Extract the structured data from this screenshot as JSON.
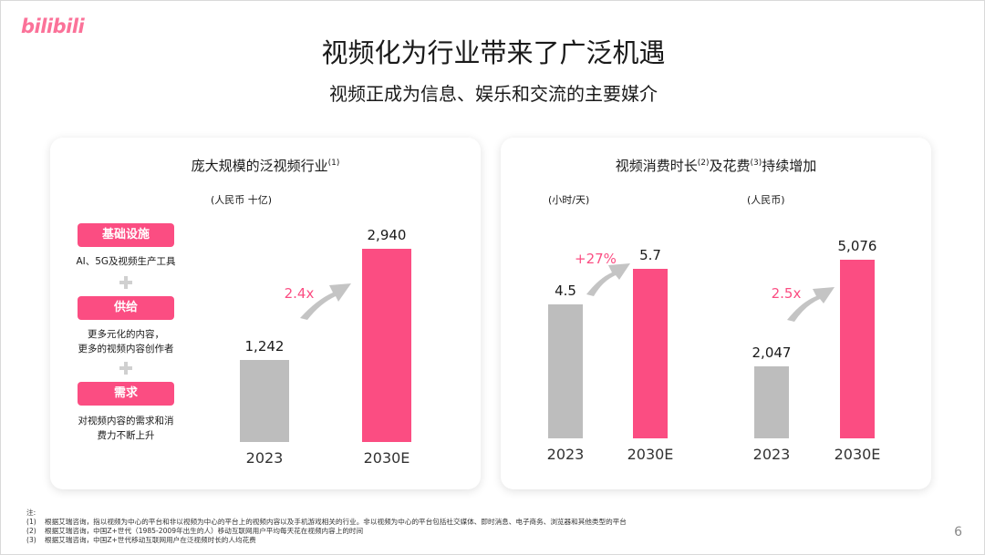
{
  "logo": "bilibili",
  "title": "视频化为行业带来了广泛机遇",
  "subtitle": "视频正成为信息、娱乐和交流的主要媒介",
  "left_panel": {
    "title": "庞大规模的泛视频行业",
    "title_note": "(1)",
    "unit": "(人民币 十亿)",
    "drivers": [
      {
        "label": "基础设施",
        "desc": "AI、5G及视频生产工具"
      },
      {
        "label": "供给",
        "desc": "更多元化的内容，\n更多的视频内容创作者"
      },
      {
        "label": "需求",
        "desc": "对视频内容的需求和消\n费力不断上升"
      }
    ],
    "growth": "2.4x"
  },
  "right_panel": {
    "title_part1": "视频消费时长",
    "note_a": "(2)",
    "title_part2": "及花费",
    "note_b": "(3)",
    "title_part3": "持续增加",
    "unit_time": "(小时/天)",
    "unit_spend": "(人民币)",
    "growth_time": "+27%",
    "growth_spend": "2.5x"
  },
  "chart_data": [
    {
      "type": "bar",
      "title": "庞大规模的泛视频行业",
      "ylabel": "(人民币 十亿)",
      "categories": [
        "2023",
        "2030E"
      ],
      "values": [
        1242,
        2940
      ],
      "value_labels": [
        "1,242",
        "2,940"
      ],
      "colors": [
        "#bdbdbd",
        "#fb4d82"
      ]
    },
    {
      "type": "bar",
      "title": "视频消费时长",
      "ylabel": "(小时/天)",
      "categories": [
        "2023",
        "2030E"
      ],
      "values": [
        4.5,
        5.7
      ],
      "value_labels": [
        "4.5",
        "5.7"
      ],
      "colors": [
        "#bdbdbd",
        "#fb4d82"
      ]
    },
    {
      "type": "bar",
      "title": "花费",
      "ylabel": "(人民币)",
      "categories": [
        "2023",
        "2030E"
      ],
      "values": [
        2047,
        5076
      ],
      "value_labels": [
        "2,047",
        "5,076"
      ],
      "colors": [
        "#bdbdbd",
        "#fb4d82"
      ]
    }
  ],
  "notes": {
    "heading": "注:",
    "items": [
      {
        "num": "(1)",
        "text": "根据艾瑞咨询，指以视频为中心的平台和非以视频为中心的平台上的视频内容以及手机游戏相关的行业。非以视频为中心的平台包括社交媒体、即时消息、电子商务、浏览器和其他类型的平台"
      },
      {
        "num": "(2)",
        "text": "根据艾瑞咨询，中国Z+世代（1985-2009年出生的人）移动互联网用户平均每天花在视频内容上的时间"
      },
      {
        "num": "(3)",
        "text": "根据艾瑞咨询，中国Z+世代移动互联网用户在泛视频时长的人均花费"
      }
    ]
  },
  "page_number": "6",
  "colors": {
    "accent": "#fb4d82",
    "gray_bar": "#bdbdbd",
    "logo": "#fb7299"
  }
}
